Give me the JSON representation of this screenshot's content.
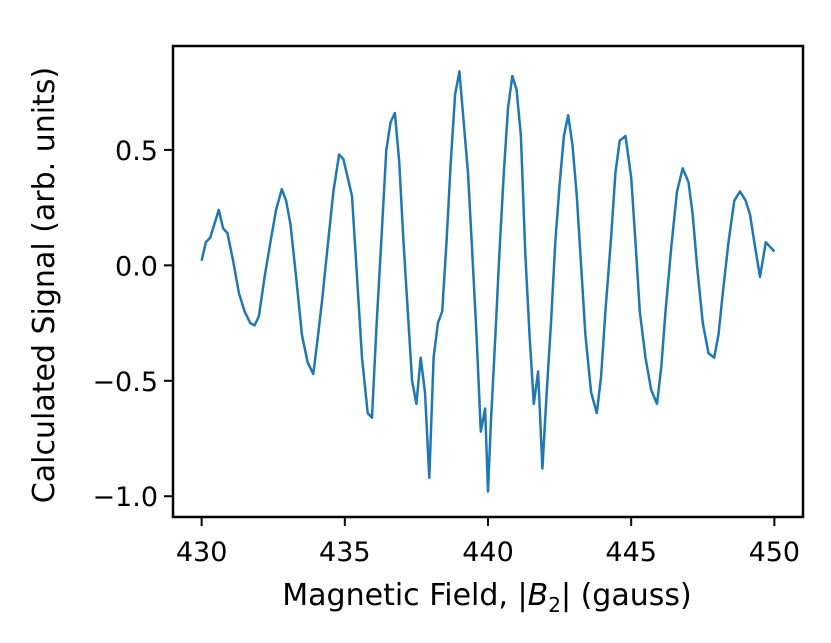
{
  "chart_data": {
    "type": "line",
    "title": "",
    "xlabel_prefix": "Magnetic Field, |",
    "xlabel_var": "B",
    "xlabel_sub": "2",
    "xlabel_suffix": "| (gauss)",
    "ylabel": "Calculated Signal (arb. units)",
    "xlim": [
      429,
      451
    ],
    "ylim": [
      -1.09,
      0.95
    ],
    "grid": false,
    "legend": "none",
    "line_color": "#1f77b4",
    "xticks": [
      430,
      435,
      440,
      445,
      450
    ],
    "xtick_labels": [
      "430",
      "435",
      "440",
      "445",
      "450"
    ],
    "yticks": [
      -1.0,
      -0.5,
      0.0,
      0.5
    ],
    "ytick_labels": [
      "−1.0",
      "−0.5",
      "0.0",
      "0.5"
    ],
    "series": [
      {
        "x": [
          430.0,
          430.15,
          430.3,
          430.45,
          430.6,
          430.75,
          430.9,
          431.1,
          431.3,
          431.5,
          431.7,
          431.85,
          432.0,
          432.2,
          432.4,
          432.6,
          432.8,
          432.95,
          433.1,
          433.3,
          433.5,
          433.7,
          433.9,
          434.05,
          434.2,
          434.4,
          434.6,
          434.8,
          434.95,
          435.1,
          435.25,
          435.4,
          435.6,
          435.8,
          435.95,
          436.1,
          436.3,
          436.45,
          436.6,
          436.75,
          436.9,
          437.05,
          437.2,
          437.35,
          437.5,
          437.65,
          437.8,
          437.95,
          438.1,
          438.25,
          438.4,
          438.55,
          438.7,
          438.85,
          439.0,
          439.15,
          439.3,
          439.45,
          439.6,
          439.75,
          439.9,
          440.0,
          440.1,
          440.25,
          440.4,
          440.55,
          440.7,
          440.85,
          441.0,
          441.15,
          441.3,
          441.45,
          441.6,
          441.75,
          441.9,
          442.05,
          442.2,
          442.35,
          442.5,
          442.65,
          442.8,
          442.95,
          443.1,
          443.25,
          443.4,
          443.6,
          443.8,
          443.95,
          444.1,
          444.3,
          444.45,
          444.6,
          444.8,
          445.0,
          445.15,
          445.3,
          445.5,
          445.7,
          445.9,
          446.05,
          446.2,
          446.4,
          446.6,
          446.8,
          447.0,
          447.15,
          447.3,
          447.5,
          447.7,
          447.9,
          448.05,
          448.2,
          448.4,
          448.6,
          448.8,
          449.0,
          449.15,
          449.3,
          449.5,
          449.7,
          449.85,
          450.0
        ],
        "y": [
          0.02,
          0.1,
          0.12,
          0.18,
          0.24,
          0.16,
          0.14,
          0.02,
          -0.12,
          -0.2,
          -0.25,
          -0.26,
          -0.22,
          -0.05,
          0.1,
          0.24,
          0.33,
          0.28,
          0.18,
          -0.05,
          -0.3,
          -0.42,
          -0.47,
          -0.32,
          -0.16,
          0.08,
          0.32,
          0.48,
          0.46,
          0.38,
          0.3,
          0.0,
          -0.4,
          -0.64,
          -0.66,
          -0.28,
          0.16,
          0.5,
          0.62,
          0.66,
          0.45,
          0.1,
          -0.2,
          -0.5,
          -0.6,
          -0.4,
          -0.55,
          -0.92,
          -0.4,
          -0.25,
          -0.2,
          0.1,
          0.45,
          0.74,
          0.84,
          0.62,
          0.4,
          0.06,
          -0.3,
          -0.72,
          -0.62,
          -0.98,
          -0.68,
          -0.32,
          0.06,
          0.4,
          0.68,
          0.82,
          0.76,
          0.56,
          0.06,
          -0.3,
          -0.6,
          -0.46,
          -0.88,
          -0.55,
          -0.25,
          0.1,
          0.35,
          0.56,
          0.65,
          0.52,
          0.3,
          0.0,
          -0.3,
          -0.55,
          -0.64,
          -0.48,
          -0.2,
          0.12,
          0.4,
          0.54,
          0.56,
          0.38,
          0.1,
          -0.2,
          -0.4,
          -0.54,
          -0.6,
          -0.44,
          -0.2,
          0.08,
          0.32,
          0.42,
          0.36,
          0.22,
          0.0,
          -0.25,
          -0.38,
          -0.4,
          -0.3,
          -0.12,
          0.1,
          0.28,
          0.32,
          0.28,
          0.22,
          0.1,
          -0.05,
          0.1,
          0.08,
          0.06
        ]
      }
    ]
  }
}
